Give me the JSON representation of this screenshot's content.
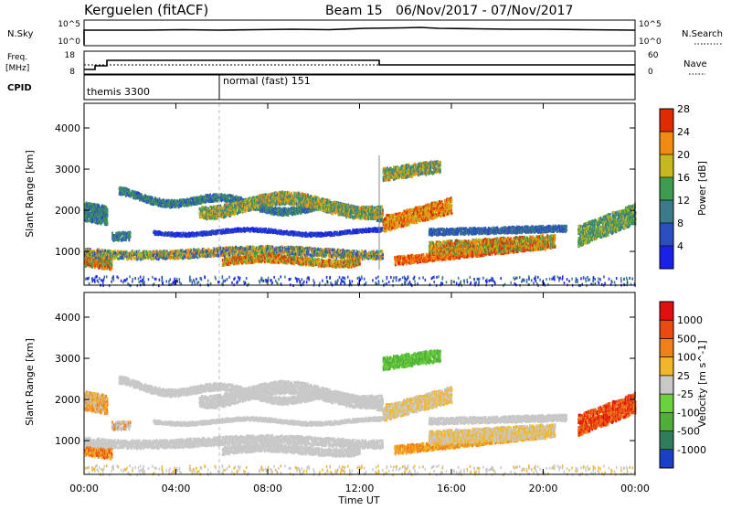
{
  "header": {
    "station": "Kerguelen (fitACF)",
    "beam": "Beam 15",
    "date_range": "06/Nov/2017 - 07/Nov/2017"
  },
  "status": {
    "nsky_label": "N.Sky",
    "nsky_ticks": [
      "10^5",
      "10^0"
    ],
    "nsearch_label": "N.Search",
    "nsearch_ticks": [
      "10^5",
      "10^0"
    ],
    "freq_label": [
      "Freq.",
      "[MHz]"
    ],
    "freq_ticks": [
      "18",
      "8"
    ],
    "nave_label": "Nave",
    "nave_ticks": [
      "60",
      "0"
    ],
    "cpid_label": "CPID",
    "cpid_segments": [
      {
        "name": "themis 3300",
        "start_hour": 0
      },
      {
        "name": "normal (fast) 151",
        "start_hour": 6
      }
    ]
  },
  "x_axis": {
    "label": "Time UT",
    "ticks": [
      "00:00",
      "04:00",
      "08:00",
      "12:00",
      "16:00",
      "20:00",
      "00:00"
    ],
    "range_hours": [
      0,
      24
    ]
  },
  "chart_data": [
    {
      "type": "heatmap",
      "title": "Power",
      "ylabel": "Slant Range [km]",
      "ylim": [
        180,
        4600
      ],
      "yticks": [
        "1000",
        "2000",
        "3000",
        "4000"
      ],
      "colorbar_label": "Power [dB]",
      "colorbar_ticks": [
        "4",
        "8",
        "12",
        "16",
        "20",
        "24",
        "28"
      ],
      "colorbar_range": [
        0,
        32
      ],
      "colorbar_colors": [
        "#1a20e8",
        "#2a4dc0",
        "#3b7a8a",
        "#3f9b50",
        "#c8b820",
        "#f08a10",
        "#e02a00"
      ]
    },
    {
      "type": "heatmap",
      "title": "Velocity",
      "ylabel": "Slant Range [km]",
      "ylim": [
        180,
        4600
      ],
      "yticks": [
        "1000",
        "2000",
        "3000",
        "4000"
      ],
      "colorbar_label": "Velocity [m s^-1]",
      "colorbar_ticks": [
        "1000",
        "500",
        "100",
        "25",
        "-25",
        "-100",
        "-500",
        "-1000"
      ],
      "colorbar_colors": [
        "#1c3fc8",
        "#2f7d5a",
        "#4fae3a",
        "#6ad23a",
        "#c8c8c8",
        "#f2b62a",
        "#f08018",
        "#e84a10",
        "#e01010"
      ]
    }
  ]
}
